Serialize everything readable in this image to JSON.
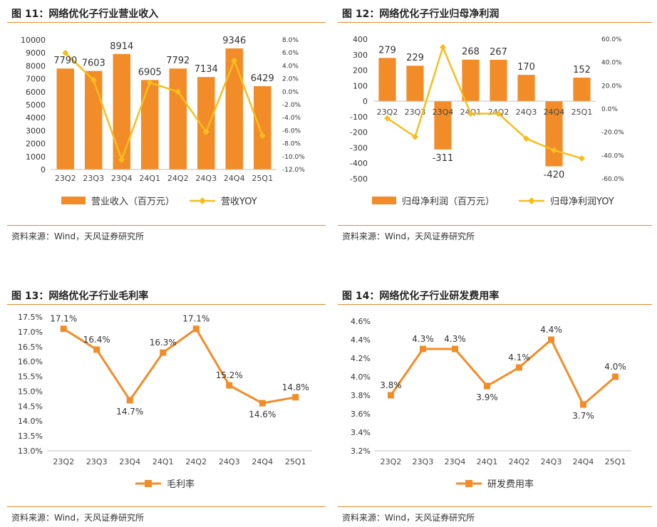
{
  "colors": {
    "bar": "#F28C28",
    "line": "#F5BE1F",
    "line_orange": "#F28C28",
    "rule": "#E08A2A"
  },
  "source": "资料来源：Wind，天风证券研究所",
  "chart_data": [
    {
      "type": "bar",
      "title": "图 11：网络优化子行业营业收入",
      "categories": [
        "23Q2",
        "23Q3",
        "23Q4",
        "24Q1",
        "24Q2",
        "24Q3",
        "24Q4",
        "25Q1"
      ],
      "series": [
        {
          "name": "营业收入（百万元）",
          "type": "bar",
          "axis": "left",
          "values": [
            7790,
            7603,
            8914,
            6905,
            7792,
            7134,
            9346,
            6429
          ]
        },
        {
          "name": "营收YOY",
          "type": "line",
          "axis": "right",
          "values": [
            6.0,
            1.8,
            -10.5,
            1.4,
            0.0,
            -6.2,
            4.8,
            -6.8
          ]
        }
      ],
      "data_labels": [
        "7790",
        "7603",
        "8914",
        "6905",
        "7792",
        "7134",
        "9346",
        "6429"
      ],
      "ylim": [
        0,
        10000
      ],
      "y_ticks": [
        "0",
        "1000",
        "2000",
        "3000",
        "4000",
        "5000",
        "6000",
        "7000",
        "8000",
        "9000",
        "10000"
      ],
      "y2lim": [
        -12,
        8
      ],
      "y2_ticks": [
        "-12.0%",
        "-10.0%",
        "-8.0%",
        "-6.0%",
        "-4.0%",
        "-2.0%",
        "0.0%",
        "2.0%",
        "4.0%",
        "6.0%",
        "8.0%"
      ],
      "legend": "bottom",
      "grid": false
    },
    {
      "type": "bar",
      "title": "图 12：网络优化子行业归母净利润",
      "categories": [
        "23Q2",
        "23Q3",
        "23Q4",
        "24Q1",
        "24Q2",
        "24Q3",
        "24Q4",
        "25Q1"
      ],
      "series": [
        {
          "name": "归母净利润（百万元）",
          "type": "bar",
          "axis": "left",
          "values": [
            279,
            229,
            -311,
            268,
            267,
            170,
            -420,
            152
          ]
        },
        {
          "name": "归母净利润YOY",
          "type": "line",
          "axis": "right",
          "values": [
            -8.0,
            -24.0,
            53.0,
            -4.0,
            -4.0,
            -25.5,
            -35.5,
            -42.5
          ]
        }
      ],
      "data_labels": [
        "279",
        "229",
        "-311",
        "268",
        "267",
        "170",
        "-420",
        "152"
      ],
      "ylim": [
        -500,
        400
      ],
      "y_ticks": [
        "-500",
        "-400",
        "-300",
        "-200",
        "-100",
        "0",
        "100",
        "200",
        "300",
        "400"
      ],
      "y2lim": [
        -60,
        60
      ],
      "y2_ticks": [
        "-60.0%",
        "-40.0%",
        "-20.0%",
        "0.0%",
        "20.0%",
        "40.0%",
        "60.0%"
      ],
      "legend": "bottom",
      "grid": false
    },
    {
      "type": "line",
      "title": "图 13：网络优化子行业毛利率",
      "categories": [
        "23Q2",
        "23Q3",
        "23Q4",
        "24Q1",
        "24Q2",
        "24Q3",
        "24Q4",
        "25Q1"
      ],
      "series": [
        {
          "name": "毛利率",
          "values": [
            17.1,
            16.4,
            14.7,
            16.3,
            17.1,
            15.2,
            14.6,
            14.8
          ]
        }
      ],
      "data_labels": [
        "17.1%",
        "16.4%",
        "14.7%",
        "16.3%",
        "17.1%",
        "15.2%",
        "14.6%",
        "14.8%"
      ],
      "ylim": [
        13.0,
        17.5
      ],
      "y_ticks": [
        "13.0%",
        "13.5%",
        "14.0%",
        "14.5%",
        "15.0%",
        "15.5%",
        "16.0%",
        "16.5%",
        "17.0%",
        "17.5%"
      ],
      "legend": "bottom",
      "grid": false
    },
    {
      "type": "line",
      "title": "图 14：网络优化子行业研发费用率",
      "categories": [
        "23Q2",
        "23Q3",
        "23Q4",
        "24Q1",
        "24Q2",
        "24Q3",
        "24Q4",
        "25Q1"
      ],
      "series": [
        {
          "name": "研发费用率",
          "values": [
            3.8,
            4.3,
            4.3,
            3.9,
            4.1,
            4.4,
            3.7,
            4.0
          ]
        }
      ],
      "data_labels": [
        "3.8%",
        "4.3%",
        "4.3%",
        "3.9%",
        "4.1%",
        "4.4%",
        "3.7%",
        "4.0%"
      ],
      "ylim": [
        3.2,
        4.6
      ],
      "y_ticks": [
        "3.2%",
        "3.4%",
        "3.6%",
        "3.8%",
        "4.0%",
        "4.2%",
        "4.4%",
        "4.6%"
      ],
      "legend": "bottom",
      "grid": false
    }
  ]
}
